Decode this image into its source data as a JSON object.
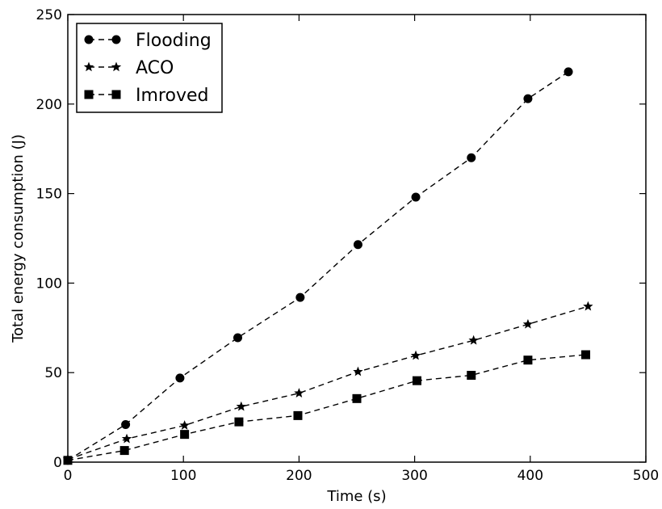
{
  "chart_data": {
    "type": "line",
    "title": "",
    "xlabel": "Time (s)",
    "ylabel": "Total energy consumption (J)",
    "xlim": [
      0,
      500
    ],
    "ylim": [
      0,
      250
    ],
    "xticks": [
      0,
      100,
      200,
      300,
      400,
      500
    ],
    "yticks": [
      0,
      50,
      100,
      150,
      200,
      250
    ],
    "grid": false,
    "legend": "top-left",
    "series": [
      {
        "name": "Flooding",
        "marker": "circle",
        "line": "dashed",
        "color": "#000000",
        "points": [
          [
            0,
            1
          ],
          [
            50,
            21
          ],
          [
            97,
            47
          ],
          [
            147,
            69.5
          ],
          [
            201,
            92
          ],
          [
            251,
            121.5
          ],
          [
            301,
            148
          ],
          [
            349,
            170
          ],
          [
            398,
            203
          ],
          [
            433,
            218
          ]
        ]
      },
      {
        "name": "ACO",
        "marker": "star",
        "line": "dashed",
        "color": "#000000",
        "points": [
          [
            0,
            1.5
          ],
          [
            51,
            13
          ],
          [
            101,
            20.5
          ],
          [
            150,
            31
          ],
          [
            200,
            38.5
          ],
          [
            251,
            50.5
          ],
          [
            301,
            59.5
          ],
          [
            351,
            68
          ],
          [
            398,
            77
          ],
          [
            450,
            87
          ]
        ]
      },
      {
        "name": "Imroved",
        "marker": "square",
        "line": "dashed",
        "color": "#000000",
        "points": [
          [
            0,
            1
          ],
          [
            49,
            6.5
          ],
          [
            101,
            15.5
          ],
          [
            148,
            22.5
          ],
          [
            199,
            26
          ],
          [
            250,
            35.5
          ],
          [
            302,
            45.5
          ],
          [
            349,
            48.5
          ],
          [
            398,
            57
          ],
          [
            448,
            60
          ]
        ]
      }
    ]
  }
}
